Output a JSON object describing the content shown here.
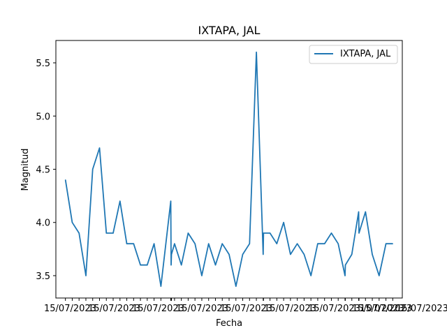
{
  "chart_data": {
    "type": "line",
    "title": "IXTAPA, JAL",
    "xlabel": "Fecha",
    "ylabel": "Magnitud",
    "legend_position": "top-right",
    "grid": false,
    "ylim": [
      3.29,
      5.71
    ],
    "yticks": [
      "3.5",
      "4.0",
      "4.5",
      "5.0",
      "5.5"
    ],
    "xtick_overlap_text": "15/07/2023",
    "series": [
      {
        "name": "IXTAPA, JAL",
        "color": "#1f77b4",
        "y": [
          4.4,
          4.0,
          3.9,
          3.5,
          4.5,
          4.7,
          3.9,
          3.9,
          4.2,
          3.8,
          3.8,
          3.6,
          3.6,
          3.8,
          3.4,
          4.2,
          3.6,
          3.7,
          3.8,
          3.6,
          3.9,
          3.8,
          3.5,
          3.8,
          3.6,
          3.8,
          3.7,
          3.4,
          3.7,
          3.8,
          5.6,
          3.7,
          3.9,
          3.9,
          3.8,
          4.0,
          3.7,
          3.8,
          3.7,
          3.5,
          3.8,
          3.8,
          3.9,
          3.8,
          3.5,
          3.6,
          3.7,
          4.1,
          3.9,
          4.1,
          3.7,
          3.5,
          3.8,
          3.8
        ],
        "x_index": [
          0,
          1,
          2,
          3,
          4,
          5,
          6,
          7,
          8,
          9,
          10,
          11,
          12,
          13,
          14,
          15.45,
          15.5,
          15.55,
          16,
          17,
          18,
          19,
          20,
          21,
          22,
          23,
          24,
          25,
          26,
          27,
          28,
          29,
          29.05,
          30,
          31,
          32,
          33,
          34,
          35,
          36,
          37,
          38,
          39,
          40,
          41,
          41.05,
          42,
          43,
          43.05,
          44,
          45,
          46,
          47,
          48
        ]
      }
    ]
  }
}
